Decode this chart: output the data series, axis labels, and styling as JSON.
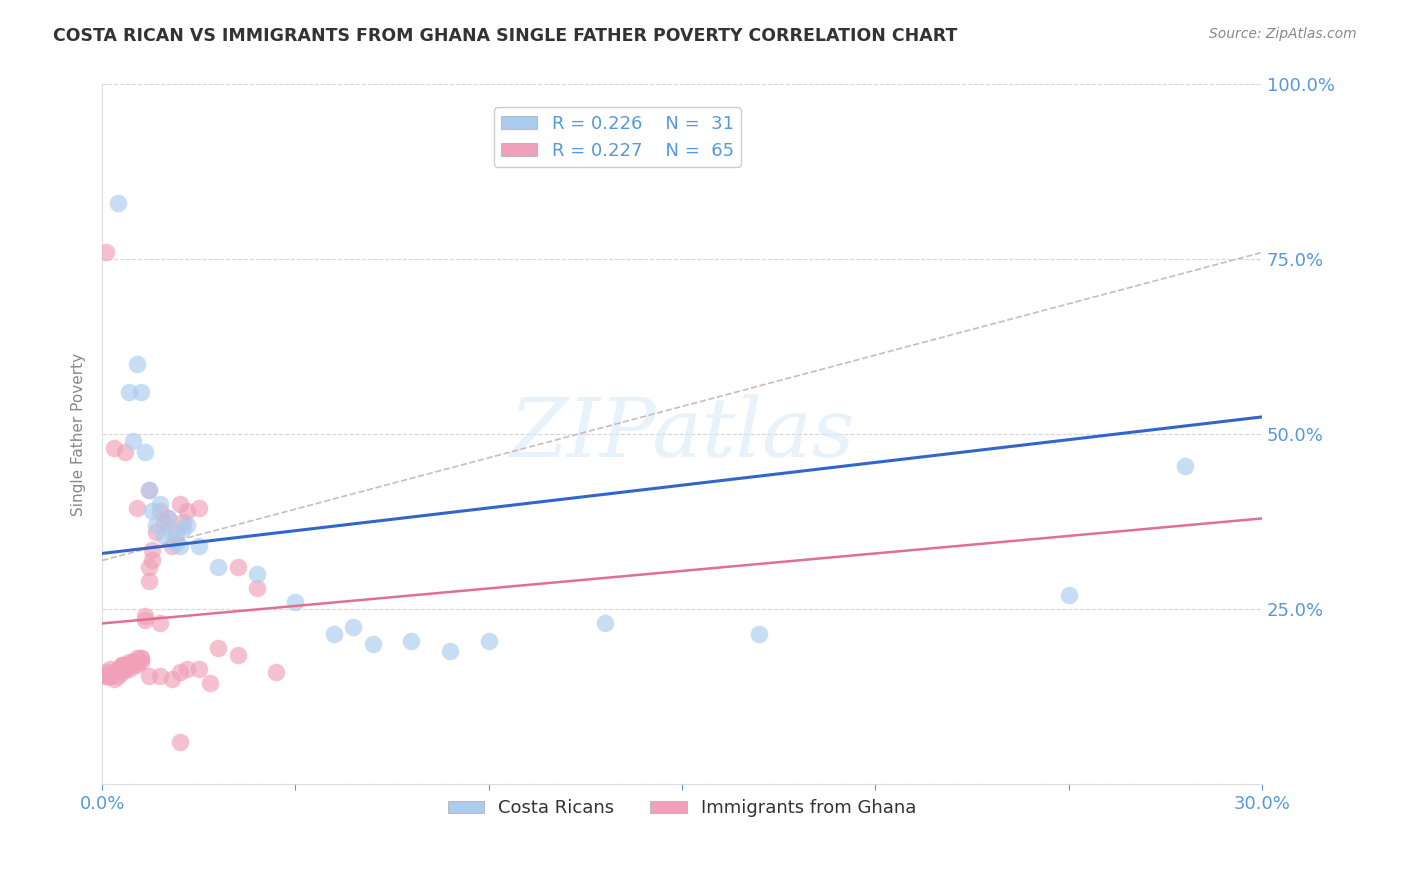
{
  "title": "COSTA RICAN VS IMMIGRANTS FROM GHANA SINGLE FATHER POVERTY CORRELATION CHART",
  "source": "Source: ZipAtlas.com",
  "ylabel": "Single Father Poverty",
  "xlim": [
    0.0,
    0.3
  ],
  "ylim": [
    0.0,
    1.0
  ],
  "xticks": [
    0.0,
    0.05,
    0.1,
    0.15,
    0.2,
    0.25,
    0.3
  ],
  "yticks": [
    0.0,
    0.25,
    0.5,
    0.75,
    1.0
  ],
  "right_ytick_labels": [
    "",
    "25.0%",
    "50.0%",
    "75.0%",
    "100.0%"
  ],
  "watermark": "ZIPatlas",
  "bg_color": "#ffffff",
  "axis_color": "#5599dd",
  "grid_color": "#cccccc",
  "blue_scatter_color": "#aaccee",
  "pink_scatter_color": "#f0a0b8",
  "blue_line_color": "#3366cc",
  "pink_line_color": "#e07090",
  "dashed_line_color": "#ccbbbb",
  "costa_rican_x": [
    0.004,
    0.007,
    0.008,
    0.009,
    0.01,
    0.011,
    0.012,
    0.013,
    0.014,
    0.015,
    0.016,
    0.017,
    0.018,
    0.019,
    0.02,
    0.021,
    0.022,
    0.025,
    0.03,
    0.04,
    0.05,
    0.06,
    0.065,
    0.07,
    0.08,
    0.09,
    0.1,
    0.13,
    0.17,
    0.25,
    0.28
  ],
  "costa_rican_y": [
    0.83,
    0.56,
    0.49,
    0.6,
    0.56,
    0.475,
    0.42,
    0.39,
    0.37,
    0.4,
    0.355,
    0.38,
    0.36,
    0.345,
    0.34,
    0.365,
    0.37,
    0.34,
    0.31,
    0.3,
    0.26,
    0.215,
    0.225,
    0.2,
    0.205,
    0.19,
    0.205,
    0.23,
    0.215,
    0.27,
    0.455
  ],
  "ghana_x": [
    0.001,
    0.001,
    0.002,
    0.002,
    0.003,
    0.003,
    0.004,
    0.004,
    0.005,
    0.005,
    0.006,
    0.006,
    0.007,
    0.007,
    0.008,
    0.008,
    0.009,
    0.009,
    0.01,
    0.01,
    0.011,
    0.011,
    0.012,
    0.012,
    0.013,
    0.013,
    0.014,
    0.015,
    0.016,
    0.017,
    0.018,
    0.019,
    0.02,
    0.021,
    0.022,
    0.025,
    0.03,
    0.035,
    0.04,
    0.045,
    0.001,
    0.002,
    0.003,
    0.004,
    0.005,
    0.006,
    0.007,
    0.008,
    0.009,
    0.01,
    0.012,
    0.015,
    0.018,
    0.02,
    0.022,
    0.025,
    0.028,
    0.035,
    0.001,
    0.003,
    0.006,
    0.009,
    0.012,
    0.015,
    0.02
  ],
  "ghana_y": [
    0.16,
    0.155,
    0.165,
    0.155,
    0.16,
    0.15,
    0.165,
    0.155,
    0.17,
    0.16,
    0.17,
    0.165,
    0.175,
    0.165,
    0.175,
    0.17,
    0.18,
    0.17,
    0.18,
    0.175,
    0.24,
    0.235,
    0.29,
    0.31,
    0.32,
    0.335,
    0.36,
    0.39,
    0.375,
    0.38,
    0.34,
    0.36,
    0.4,
    0.375,
    0.39,
    0.395,
    0.195,
    0.31,
    0.28,
    0.16,
    0.155,
    0.155,
    0.16,
    0.165,
    0.17,
    0.165,
    0.17,
    0.175,
    0.175,
    0.18,
    0.155,
    0.155,
    0.15,
    0.16,
    0.165,
    0.165,
    0.145,
    0.185,
    0.76,
    0.48,
    0.475,
    0.395,
    0.42,
    0.23,
    0.06
  ],
  "blue_line_x": [
    0.0,
    0.3
  ],
  "blue_line_y": [
    0.33,
    0.525
  ],
  "pink_line_x": [
    0.0,
    0.3
  ],
  "pink_line_y": [
    0.23,
    0.38
  ],
  "dashed_line_x": [
    0.0,
    0.3
  ],
  "dashed_line_y": [
    0.32,
    0.76
  ]
}
